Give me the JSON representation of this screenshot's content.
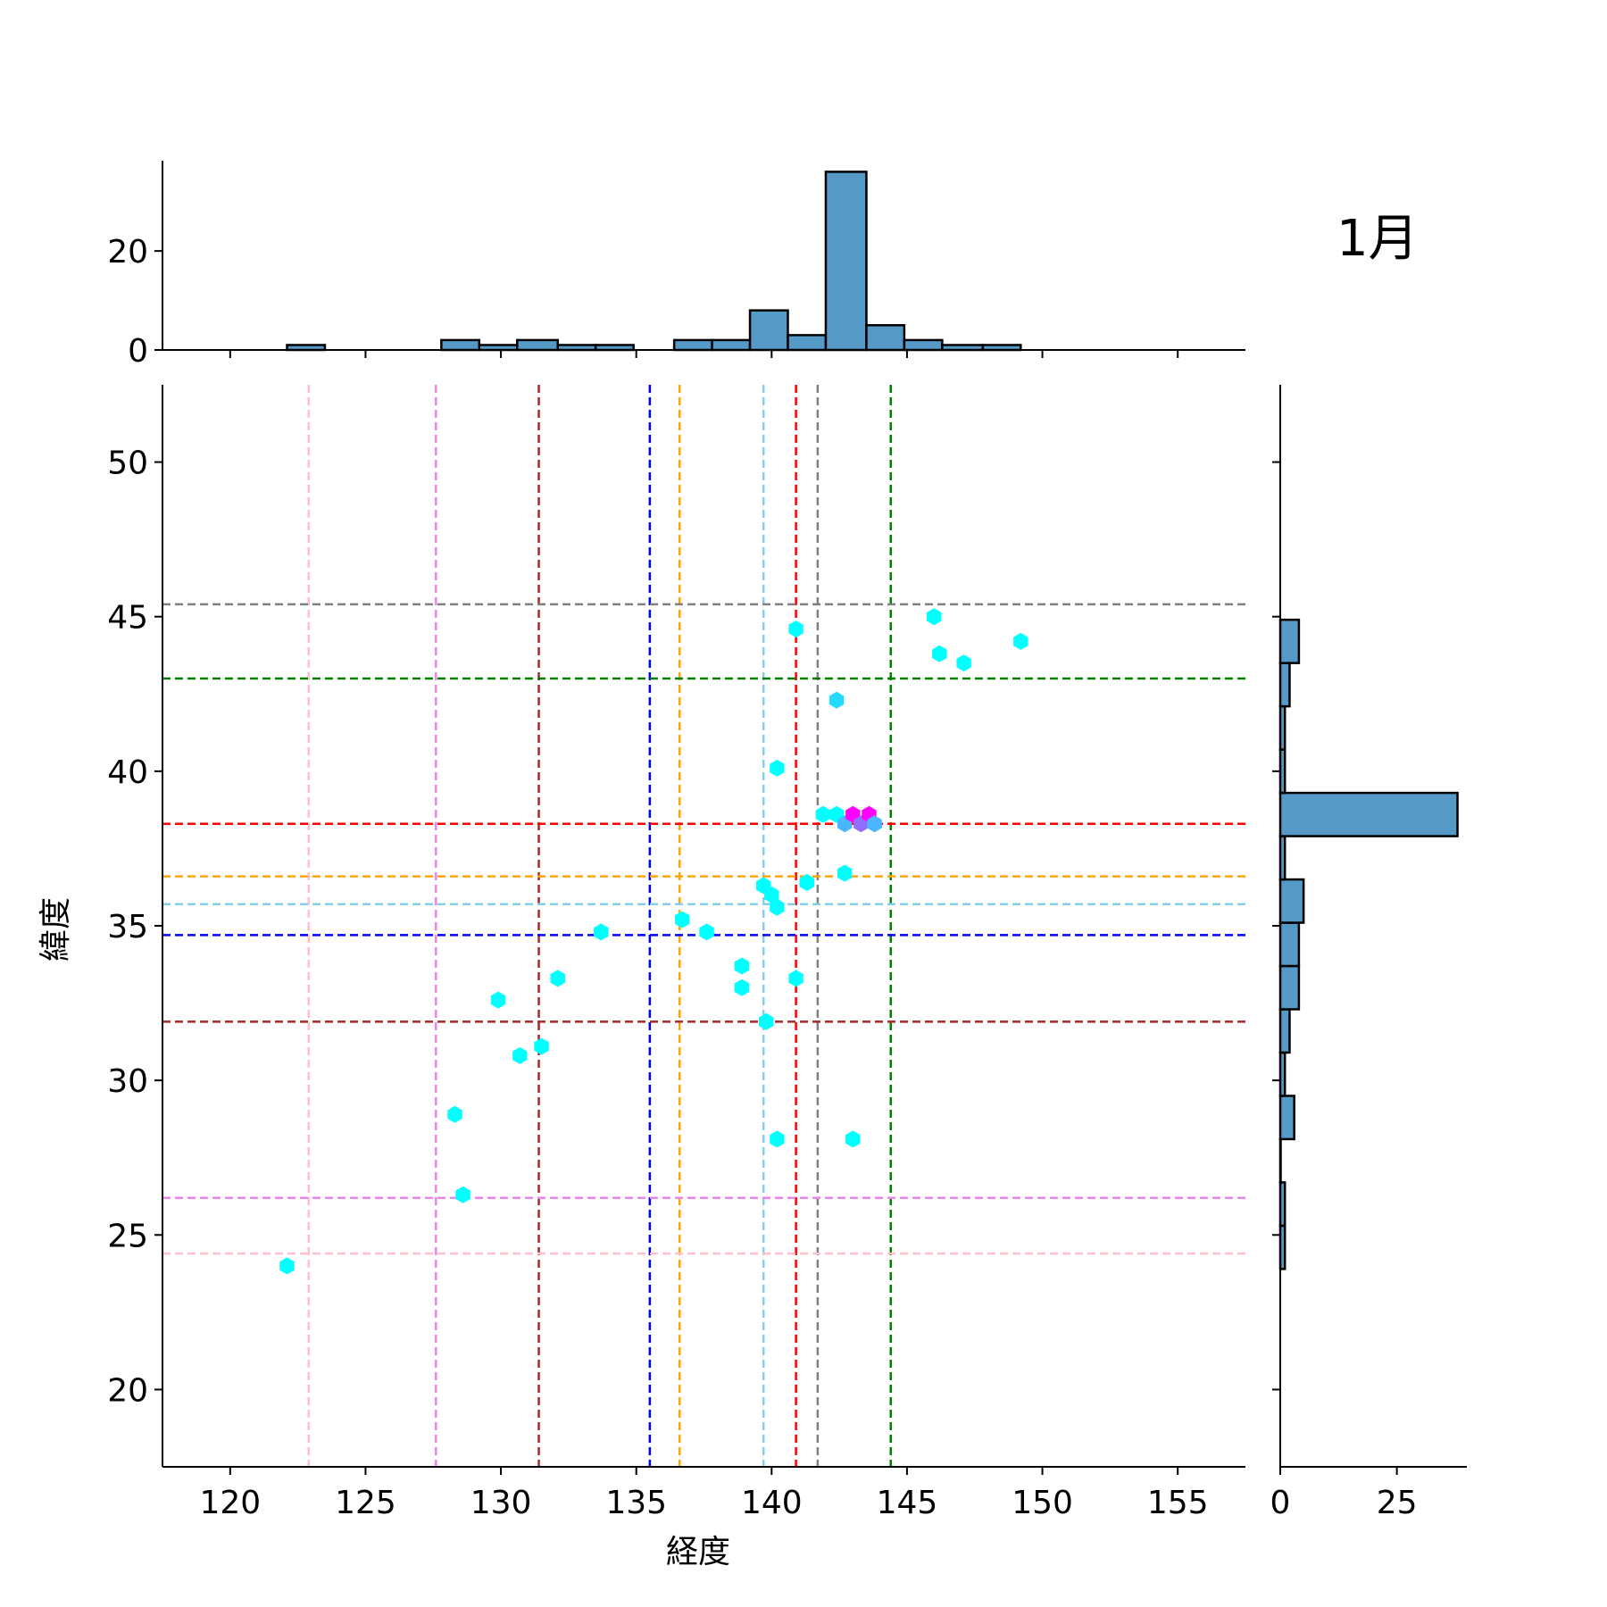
{
  "chart_data": {
    "type": "scatter",
    "variant": "jointplot-hexbin",
    "annotation": "1月",
    "xlabel": "経度",
    "ylabel": "緯度",
    "xlim": [
      117.5,
      157.5
    ],
    "ylim": [
      17.5,
      52.5
    ],
    "xticks": [
      120,
      125,
      130,
      135,
      140,
      145,
      150,
      155
    ],
    "yticks": [
      20,
      25,
      30,
      35,
      40,
      45,
      50
    ],
    "grid": false,
    "hex_cells": [
      {
        "x": 122.1,
        "y": 24.0,
        "count": 1
      },
      {
        "x": 128.3,
        "y": 28.9,
        "count": 1
      },
      {
        "x": 128.6,
        "y": 26.3,
        "count": 1
      },
      {
        "x": 129.9,
        "y": 32.6,
        "count": 1
      },
      {
        "x": 130.7,
        "y": 30.8,
        "count": 1
      },
      {
        "x": 131.5,
        "y": 31.1,
        "count": 1
      },
      {
        "x": 132.1,
        "y": 33.3,
        "count": 1
      },
      {
        "x": 133.7,
        "y": 34.8,
        "count": 1
      },
      {
        "x": 136.7,
        "y": 35.2,
        "count": 1
      },
      {
        "x": 137.6,
        "y": 34.8,
        "count": 1
      },
      {
        "x": 138.9,
        "y": 33.7,
        "count": 1
      },
      {
        "x": 138.9,
        "y": 33.0,
        "count": 1
      },
      {
        "x": 139.7,
        "y": 36.3,
        "count": 1
      },
      {
        "x": 140.0,
        "y": 36.0,
        "count": 1
      },
      {
        "x": 140.2,
        "y": 35.6,
        "count": 1
      },
      {
        "x": 139.8,
        "y": 31.9,
        "count": 1
      },
      {
        "x": 140.2,
        "y": 28.1,
        "count": 1
      },
      {
        "x": 140.2,
        "y": 40.1,
        "count": 1
      },
      {
        "x": 140.9,
        "y": 44.6,
        "count": 1
      },
      {
        "x": 140.9,
        "y": 33.3,
        "count": 1
      },
      {
        "x": 141.3,
        "y": 36.4,
        "count": 1
      },
      {
        "x": 141.9,
        "y": 38.6,
        "count": 1
      },
      {
        "x": 142.4,
        "y": 38.6,
        "count": 1
      },
      {
        "x": 142.4,
        "y": 42.3,
        "count": 2
      },
      {
        "x": 142.7,
        "y": 38.3,
        "count": 3
      },
      {
        "x": 142.7,
        "y": 36.7,
        "count": 1
      },
      {
        "x": 143.0,
        "y": 38.6,
        "count": 8
      },
      {
        "x": 143.3,
        "y": 38.3,
        "count": 5
      },
      {
        "x": 143.6,
        "y": 38.6,
        "count": 8
      },
      {
        "x": 143.8,
        "y": 38.3,
        "count": 3
      },
      {
        "x": 143.0,
        "y": 28.1,
        "count": 1
      },
      {
        "x": 146.0,
        "y": 45.0,
        "count": 1
      },
      {
        "x": 146.2,
        "y": 43.8,
        "count": 1
      },
      {
        "x": 147.1,
        "y": 43.5,
        "count": 1
      },
      {
        "x": 149.2,
        "y": 44.2,
        "count": 1
      }
    ],
    "vlines": [
      {
        "x": 122.9,
        "color": "#ffc0cb"
      },
      {
        "x": 127.6,
        "color": "#ee82ee"
      },
      {
        "x": 131.4,
        "color": "#a52a2a"
      },
      {
        "x": 135.5,
        "color": "#0000ff"
      },
      {
        "x": 136.6,
        "color": "#ffa500"
      },
      {
        "x": 139.7,
        "color": "#87ceeb"
      },
      {
        "x": 140.9,
        "color": "#ff0000"
      },
      {
        "x": 141.7,
        "color": "#808080"
      },
      {
        "x": 144.4,
        "color": "#008000"
      }
    ],
    "hlines": [
      {
        "y": 45.4,
        "color": "#808080"
      },
      {
        "y": 43.0,
        "color": "#008000"
      },
      {
        "y": 38.3,
        "color": "#ff0000"
      },
      {
        "y": 36.6,
        "color": "#ffa500"
      },
      {
        "y": 35.7,
        "color": "#87ceeb"
      },
      {
        "y": 34.7,
        "color": "#0000ff"
      },
      {
        "y": 31.9,
        "color": "#a52a2a"
      },
      {
        "y": 26.2,
        "color": "#ee82ee"
      },
      {
        "y": 24.4,
        "color": "#ffc0cb"
      }
    ],
    "x_marginal": {
      "yticks": [
        0,
        20
      ],
      "ylim": [
        0,
        37.7
      ],
      "bins": [
        {
          "x0": 122.1,
          "x1": 123.5,
          "count": 1
        },
        {
          "x0": 123.5,
          "x1": 124.9,
          "count": 0
        },
        {
          "x0": 124.9,
          "x1": 126.4,
          "count": 0
        },
        {
          "x0": 126.4,
          "x1": 127.8,
          "count": 0
        },
        {
          "x0": 127.8,
          "x1": 129.2,
          "count": 2
        },
        {
          "x0": 129.2,
          "x1": 130.6,
          "count": 1
        },
        {
          "x0": 130.6,
          "x1": 132.1,
          "count": 2
        },
        {
          "x0": 132.1,
          "x1": 133.5,
          "count": 1
        },
        {
          "x0": 133.5,
          "x1": 134.9,
          "count": 1
        },
        {
          "x0": 134.9,
          "x1": 136.4,
          "count": 0
        },
        {
          "x0": 136.4,
          "x1": 137.8,
          "count": 2
        },
        {
          "x0": 137.8,
          "x1": 139.2,
          "count": 2
        },
        {
          "x0": 139.2,
          "x1": 140.6,
          "count": 8
        },
        {
          "x0": 140.6,
          "x1": 142.0,
          "count": 3
        },
        {
          "x0": 142.0,
          "x1": 143.5,
          "count": 36
        },
        {
          "x0": 143.5,
          "x1": 144.9,
          "count": 5
        },
        {
          "x0": 144.9,
          "x1": 146.3,
          "count": 2
        },
        {
          "x0": 146.3,
          "x1": 147.8,
          "count": 1
        },
        {
          "x0": 147.8,
          "x1": 149.2,
          "count": 1
        }
      ]
    },
    "y_marginal": {
      "xticks": [
        0,
        25
      ],
      "xlim": [
        0,
        40
      ],
      "bins": [
        {
          "y0": 23.9,
          "y1": 25.3,
          "count": 1
        },
        {
          "y0": 25.3,
          "y1": 26.7,
          "count": 1
        },
        {
          "y0": 26.7,
          "y1": 28.1,
          "count": 0
        },
        {
          "y0": 28.1,
          "y1": 29.5,
          "count": 3
        },
        {
          "y0": 29.5,
          "y1": 30.9,
          "count": 1
        },
        {
          "y0": 30.9,
          "y1": 32.3,
          "count": 2
        },
        {
          "y0": 32.3,
          "y1": 33.7,
          "count": 4
        },
        {
          "y0": 33.7,
          "y1": 35.1,
          "count": 4
        },
        {
          "y0": 35.1,
          "y1": 36.5,
          "count": 5
        },
        {
          "y0": 36.5,
          "y1": 37.9,
          "count": 1
        },
        {
          "y0": 37.9,
          "y1": 39.3,
          "count": 38
        },
        {
          "y0": 39.3,
          "y1": 40.7,
          "count": 1
        },
        {
          "y0": 40.7,
          "y1": 42.1,
          "count": 1
        },
        {
          "y0": 42.1,
          "y1": 43.5,
          "count": 2
        },
        {
          "y0": 43.5,
          "y1": 44.9,
          "count": 4
        }
      ]
    },
    "colors": {
      "hex_low": "#00ffff",
      "hex_high": "#ff00ff",
      "hist_fill": "#5599c7",
      "hist_edge": "#000000"
    }
  }
}
